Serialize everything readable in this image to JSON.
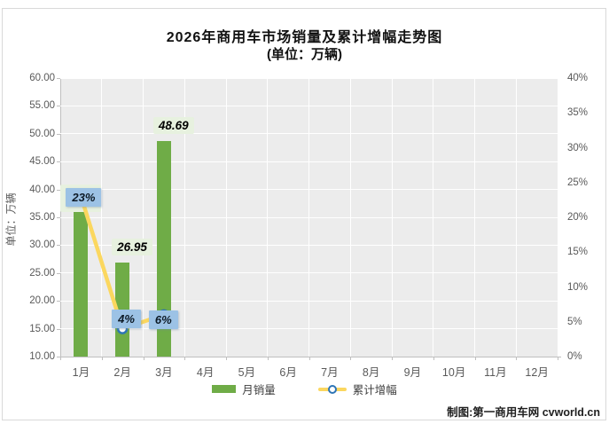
{
  "credit": "制图:第一商用车网 cvworld.cn",
  "chart_data": {
    "type": "combo",
    "title": "2026年商用车市场销量及累计增幅走势图",
    "subtitle": "(单位：万辆)",
    "categories": [
      "1月",
      "2月",
      "3月",
      "4月",
      "5月",
      "6月",
      "7月",
      "8月",
      "9月",
      "10月",
      "11月",
      "12月"
    ],
    "series": [
      {
        "name": "月销量",
        "type": "bar",
        "axis": "left",
        "color": "#6fac47",
        "values": [
          35.9,
          26.95,
          48.69,
          null,
          null,
          null,
          null,
          null,
          null,
          null,
          null,
          null
        ],
        "value_labels": [
          "",
          "26.95",
          "48.69",
          "",
          "",
          "",
          "",
          "",
          "",
          "",
          "",
          ""
        ]
      },
      {
        "name": "累计增幅",
        "type": "line",
        "axis": "right",
        "color": "#fbd75f",
        "marker_fill": "#ffffff",
        "marker_ring": "#2e75b6",
        "values": [
          23,
          4,
          6,
          null,
          null,
          null,
          null,
          null,
          null,
          null,
          null,
          null
        ],
        "point_labels": [
          "23%",
          "4%",
          "6%",
          "",
          "",
          "",
          "",
          "",
          "",
          "",
          "",
          ""
        ]
      }
    ],
    "left_axis": {
      "title": "单位：万辆",
      "min": 10,
      "max": 60,
      "step": 5,
      "decimals": 2
    },
    "right_axis": {
      "min": 0,
      "max": 40,
      "step": 5,
      "suffix": "%"
    },
    "grid": true,
    "plot_bg": "#ececec",
    "legend_position": "bottom",
    "label_colors": {
      "value_bg": "#e7f1df",
      "pct_bg": "#9cc2e5"
    }
  }
}
